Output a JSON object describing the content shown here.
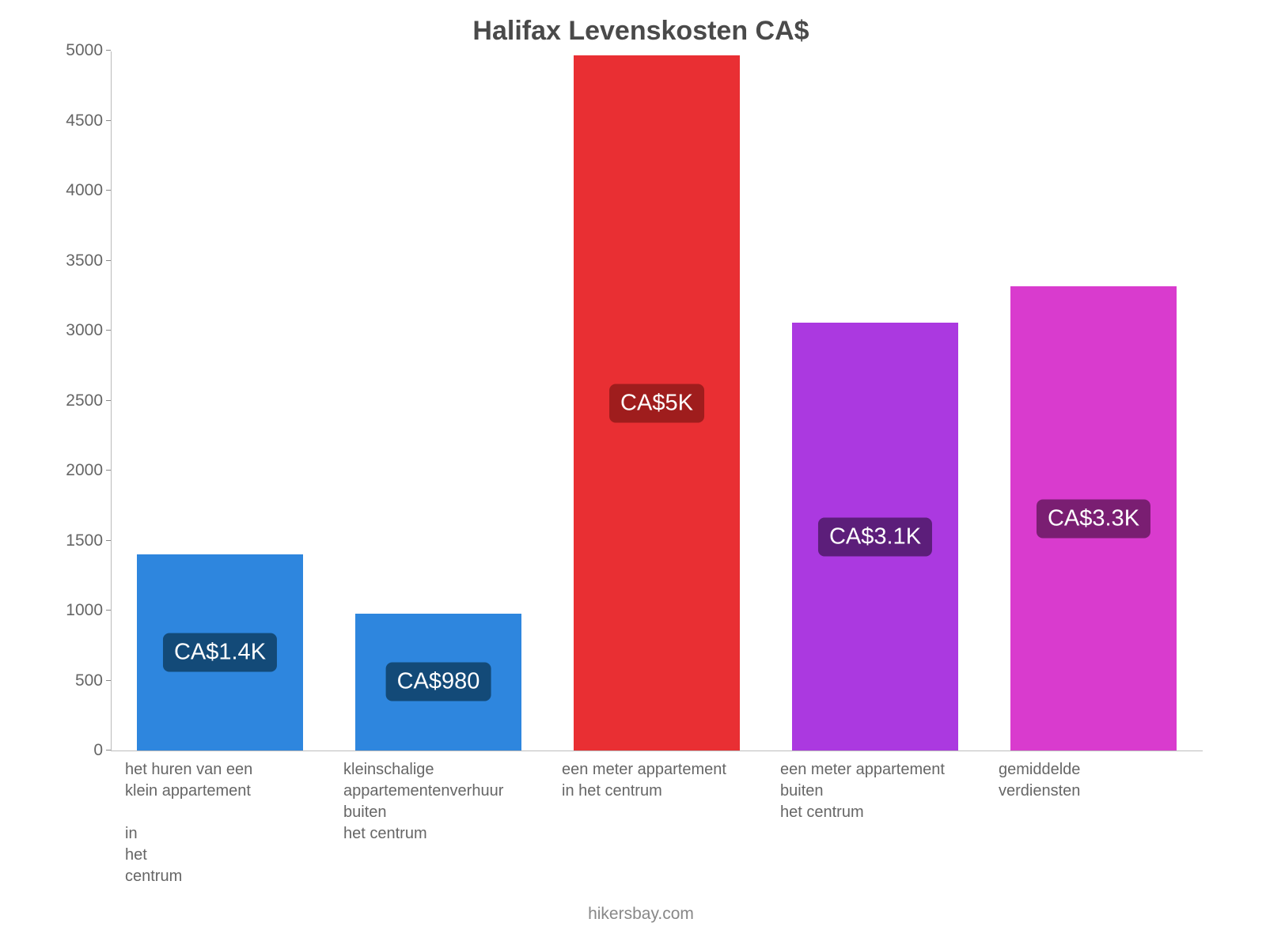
{
  "chart": {
    "type": "bar",
    "title": "Halifax Levenskosten CA$",
    "title_fontsize": 34,
    "title_color": "#4a4a4a",
    "background_color": "#ffffff",
    "axis_color": "#bbbbbb",
    "tick_label_color": "#666666",
    "tick_label_fontsize": 21,
    "x_label_fontsize": 20,
    "ylim": [
      0,
      5000
    ],
    "yticks": [
      0,
      500,
      1000,
      1500,
      2000,
      2500,
      3000,
      3500,
      4000,
      4500,
      5000
    ],
    "bar_width_ratio": 0.76,
    "categories": [
      "het huren van een\nklein appartement\n\nin\nhet\ncentrum",
      "kleinschalige\nappartementenverhuur\nbuiten\nhet centrum",
      "een meter appartement\nin het centrum",
      "een meter appartement\nbuiten\nhet centrum",
      "gemiddelde\nverdiensten"
    ],
    "values": [
      1400,
      980,
      4970,
      3060,
      3320
    ],
    "bar_colors": [
      "#2e86de",
      "#2e86de",
      "#e92f33",
      "#ab39e0",
      "#d93bce"
    ],
    "value_labels": [
      "CA$1.4K",
      "CA$980",
      "CA$5K",
      "CA$3.1K",
      "CA$3.3K"
    ],
    "value_label_bg": [
      "#134a78",
      "#134a78",
      "#9f1d1d",
      "#5c1e7a",
      "#7a1e72"
    ],
    "value_label_color": "#ffffff",
    "value_label_fontsize": 29,
    "attribution": "hikersbay.com",
    "attribution_color": "#888888",
    "attribution_fontsize": 21
  }
}
